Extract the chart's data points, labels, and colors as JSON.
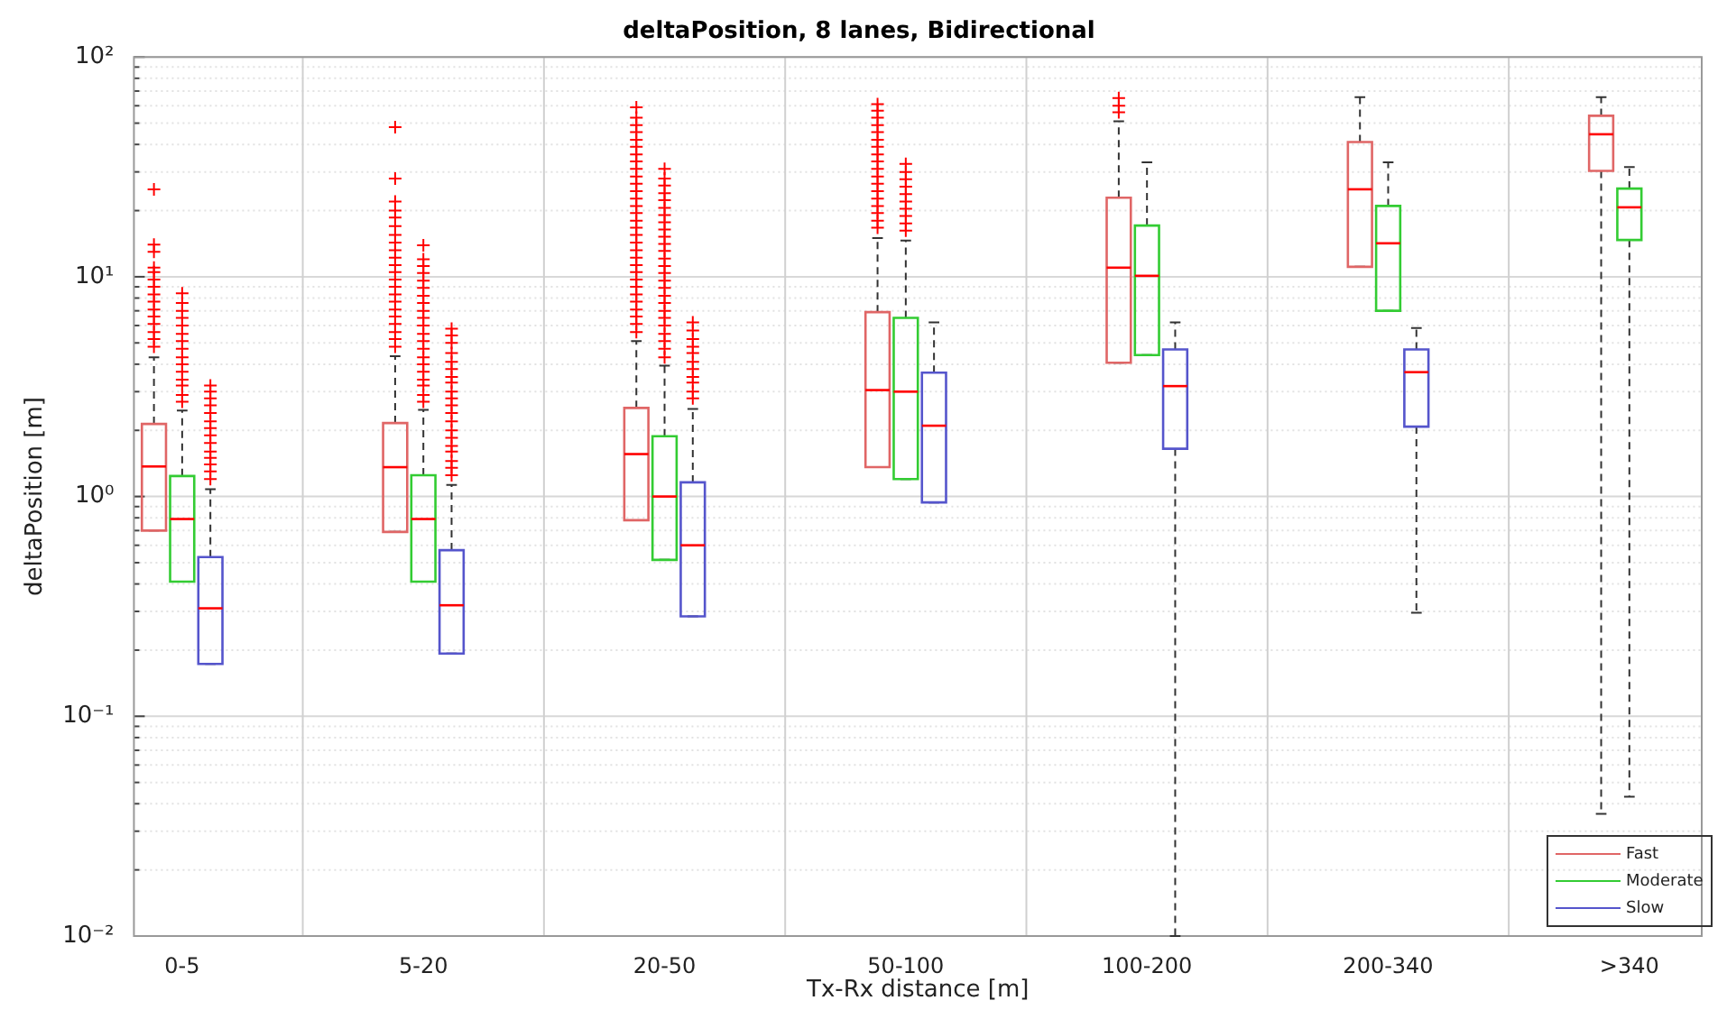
{
  "chart_data": {
    "type": "box",
    "title": "deltaPosition, 8 lanes, Bidirectional",
    "xlabel": "Tx-Rx distance [m]",
    "ylabel": "deltaPosition [m]",
    "log": "y",
    "grid": true,
    "legend": "bottom right",
    "categories": [
      "0-5",
      "5-20",
      "20-50",
      "50-100",
      "100-200",
      "200-340",
      ">340"
    ],
    "ylim": [
      0.01,
      100
    ],
    "yticks": [
      {
        "value": 0.01,
        "label": "10⁻²"
      },
      {
        "value": 0.02,
        "label": null
      },
      {
        "value": 0.03,
        "label": null
      },
      {
        "value": 0.04,
        "label": null
      },
      {
        "value": 0.05,
        "label": null
      },
      {
        "value": 0.06,
        "label": null
      },
      {
        "value": 0.07,
        "label": null
      },
      {
        "value": 0.08,
        "label": null
      },
      {
        "value": 0.09,
        "label": null
      },
      {
        "value": 0.1,
        "label": "10⁻¹"
      },
      {
        "value": 0.2,
        "label": null
      },
      {
        "value": 0.3,
        "label": null
      },
      {
        "value": 0.4,
        "label": null
      },
      {
        "value": 0.5,
        "label": null
      },
      {
        "value": 0.6,
        "label": null
      },
      {
        "value": 0.7,
        "label": null
      },
      {
        "value": 0.8,
        "label": null
      },
      {
        "value": 0.9,
        "label": null
      },
      {
        "value": 1,
        "label": "10⁰"
      },
      {
        "value": 2,
        "label": null
      },
      {
        "value": 3,
        "label": null
      },
      {
        "value": 4,
        "label": null
      },
      {
        "value": 5,
        "label": null
      },
      {
        "value": 6,
        "label": null
      },
      {
        "value": 7,
        "label": null
      },
      {
        "value": 8,
        "label": null
      },
      {
        "value": 9,
        "label": null
      },
      {
        "value": 10,
        "label": "10¹"
      },
      {
        "value": 20,
        "label": null
      },
      {
        "value": 30,
        "label": null
      },
      {
        "value": 40,
        "label": null
      },
      {
        "value": 50,
        "label": null
      },
      {
        "value": 60,
        "label": null
      },
      {
        "value": 70,
        "label": null
      },
      {
        "value": 80,
        "label": null
      },
      {
        "value": 90,
        "label": null
      },
      {
        "value": 100,
        "label": "10²"
      }
    ],
    "series": [
      {
        "name": "Fast",
        "color": "#e06666",
        "boxes": [
          {
            "low": 0.7,
            "q1": 0.7,
            "median": 1.37,
            "q3": 2.14,
            "high": 4.3,
            "outliers": [
              4.8,
              5.2,
              5.6,
              6.1,
              6.6,
              7.1,
              7.7,
              8.3,
              9,
              9.7,
              10.5,
              11,
              13,
              14,
              25
            ]
          },
          {
            "low": 0.69,
            "q1": 0.69,
            "median": 1.36,
            "q3": 2.16,
            "high": 4.35,
            "outliers": [
              4.8,
              5.2,
              5.6,
              6.1,
              6.6,
              7.1,
              7.7,
              8.3,
              9,
              9.7,
              10.5,
              11.3,
              12.2,
              13.2,
              14.3,
              15.5,
              17,
              18.6,
              20,
              22,
              28,
              48
            ]
          },
          {
            "low": 0.78,
            "q1": 0.78,
            "median": 1.56,
            "q3": 2.53,
            "high": 5.1,
            "outliers": [
              5.6,
              6.1,
              6.6,
              7.1,
              7.7,
              8.3,
              9,
              9.7,
              10.5,
              11.3,
              12.2,
              13.2,
              14.3,
              15.5,
              16.7,
              18,
              19.5,
              21,
              22.7,
              24.5,
              26.5,
              28.6,
              31,
              33.5,
              36,
              39,
              42,
              45.5,
              49,
              53,
              59
            ]
          },
          {
            "low": 1.36,
            "q1": 1.36,
            "median": 3.05,
            "q3": 6.9,
            "high": 15,
            "outliers": [
              16.7,
              18,
              19.5,
              21,
              22.7,
              24.5,
              26.5,
              28.6,
              31,
              33.5,
              36,
              39,
              42,
              45.5,
              49,
              53,
              57,
              61
            ]
          },
          {
            "low": 4.06,
            "q1": 4.06,
            "median": 11,
            "q3": 22.9,
            "high": 51,
            "outliers": [
              56,
              60,
              65
            ]
          },
          {
            "low": 11.1,
            "q1": 11.1,
            "median": 25,
            "q3": 41,
            "high": 65.6
          },
          {
            "low": 0.036,
            "q1": 30.3,
            "median": 44.5,
            "q3": 54,
            "high": 65.6
          }
        ]
      },
      {
        "name": "Moderate",
        "color": "#33cc33",
        "boxes": [
          {
            "low": 0.41,
            "q1": 0.41,
            "median": 0.79,
            "q3": 1.24,
            "high": 2.46,
            "outliers": [
              2.7,
              2.9,
              3.2,
              3.4,
              3.7,
              4,
              4.3,
              4.7,
              5.1,
              5.5,
              6,
              6.5,
              7,
              7.6,
              8.4
            ]
          },
          {
            "low": 0.41,
            "q1": 0.41,
            "median": 0.79,
            "q3": 1.25,
            "high": 2.48,
            "outliers": [
              2.7,
              2.9,
              3.2,
              3.4,
              3.7,
              4,
              4.3,
              4.7,
              5.1,
              5.5,
              6,
              6.5,
              7,
              7.6,
              8.2,
              8.9,
              9.6,
              10.4,
              11.2,
              12,
              13.9
            ]
          },
          {
            "low": 0.515,
            "q1": 0.515,
            "median": 1,
            "q3": 1.88,
            "high": 3.94,
            "outliers": [
              4.3,
              4.7,
              5.1,
              5.5,
              6,
              6.5,
              7,
              7.6,
              8.2,
              8.9,
              9.6,
              10.4,
              11.2,
              12.1,
              13.1,
              14.1,
              15.2,
              16.4,
              17.7,
              19.1,
              20.6,
              22.3,
              24,
              26,
              28,
              31
            ]
          },
          {
            "low": 1.2,
            "q1": 1.2,
            "median": 3,
            "q3": 6.5,
            "high": 14.6,
            "outliers": [
              16.2,
              17.5,
              18.9,
              20.4,
              22,
              23.8,
              25.7,
              27.8,
              30,
              32.6
            ]
          },
          {
            "low": 4.4,
            "q1": 4.4,
            "median": 10.1,
            "q3": 17.1,
            "high": 33.2
          },
          {
            "low": 7,
            "q1": 7,
            "median": 14.2,
            "q3": 21,
            "high": 33.2
          },
          {
            "low": 0.043,
            "q1": 14.7,
            "median": 20.7,
            "q3": 25.2,
            "high": 31.6
          }
        ]
      },
      {
        "name": "Slow",
        "color": "#5555cc",
        "boxes": [
          {
            "low": 0.173,
            "q1": 0.173,
            "median": 0.31,
            "q3": 0.53,
            "high": 1.08,
            "outliers": [
              1.2,
              1.3,
              1.4,
              1.5,
              1.6,
              1.75,
              1.9,
              2.05,
              2.2,
              2.4,
              2.6,
              2.8,
              3,
              3.2
            ]
          },
          {
            "low": 0.193,
            "q1": 0.193,
            "median": 0.32,
            "q3": 0.57,
            "high": 1.13,
            "outliers": [
              1.25,
              1.35,
              1.45,
              1.6,
              1.7,
              1.85,
              2,
              2.2,
              2.4,
              2.6,
              2.8,
              3,
              3.3,
              3.5,
              3.8,
              4.1,
              4.5,
              5,
              5.4,
              5.8
            ]
          },
          {
            "low": 0.285,
            "q1": 0.285,
            "median": 0.6,
            "q3": 1.16,
            "high": 2.5,
            "outliers": [
              2.8,
              3,
              3.3,
              3.5,
              3.8,
              4.1,
              4.5,
              4.8,
              5.2,
              5.7,
              6.2
            ]
          },
          {
            "low": 0.94,
            "q1": 0.94,
            "median": 2.1,
            "q3": 3.66,
            "high": 6.2
          },
          {
            "low": 0.01,
            "q1": 1.65,
            "median": 3.18,
            "q3": 4.67,
            "high": 6.2
          },
          {
            "low": 0.296,
            "q1": 2.08,
            "median": 3.68,
            "q3": 4.67,
            "high": 5.85
          },
          null
        ]
      }
    ]
  }
}
